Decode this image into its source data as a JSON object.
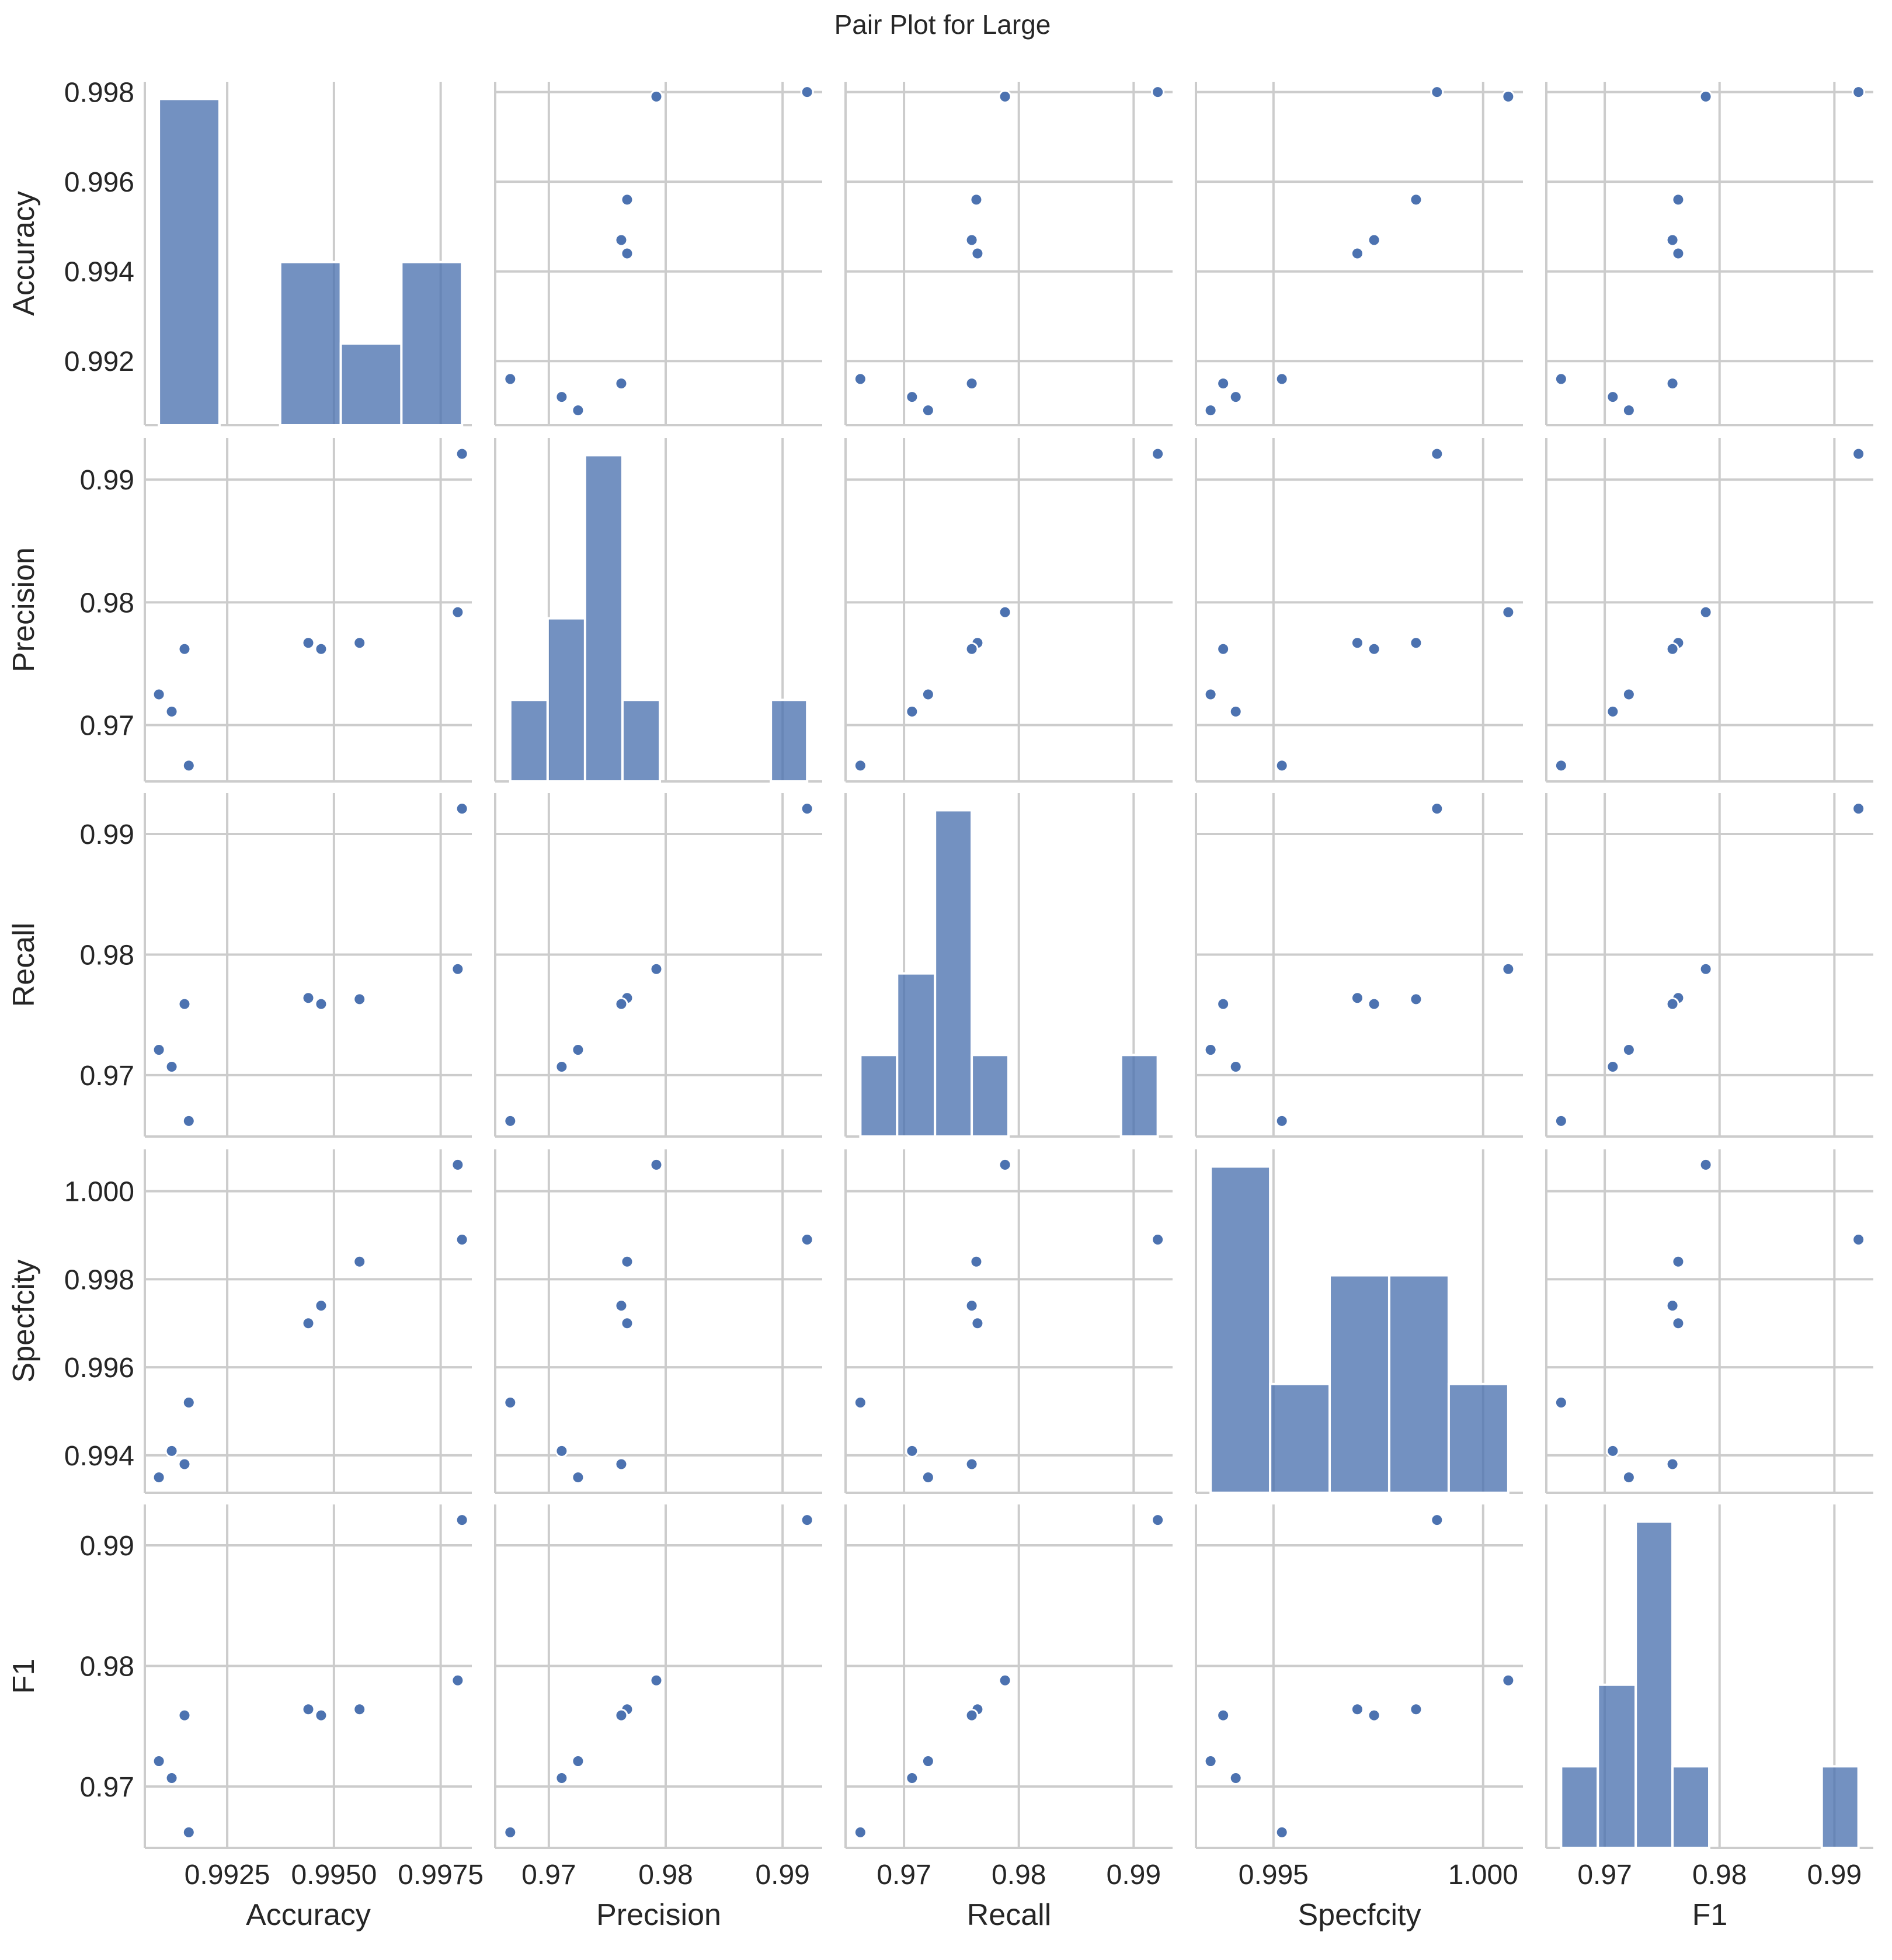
{
  "chart_data": {
    "type": "scatter",
    "title": "Pair Plot for Large",
    "variables": [
      "Accuracy",
      "Precision",
      "Recall",
      "Specfcity",
      "F1"
    ],
    "samples": [
      [
        0.998,
        0.9921,
        0.9921,
        0.9989,
        0.9921
      ],
      [
        0.9979,
        0.9792,
        0.9788,
        1.0006,
        0.9788
      ],
      [
        0.9956,
        0.9767,
        0.9763,
        0.9984,
        0.9764
      ],
      [
        0.9947,
        0.9762,
        0.9759,
        0.9974,
        0.9759
      ],
      [
        0.9944,
        0.9767,
        0.9764,
        0.997,
        0.9764
      ],
      [
        0.9916,
        0.9667,
        0.9662,
        0.9952,
        0.9662
      ],
      [
        0.9915,
        0.9762,
        0.9759,
        0.9938,
        0.9759
      ],
      [
        0.9912,
        0.9711,
        0.9707,
        0.9941,
        0.9707
      ],
      [
        0.9909,
        0.9725,
        0.9721,
        0.9935,
        0.9721
      ]
    ],
    "histograms": [
      {
        "variable": "Accuracy",
        "edges": [
          0.9909,
          0.99232,
          0.99374,
          0.99516,
          0.99658,
          0.998
        ],
        "counts": [
          4,
          0,
          2,
          1,
          2
        ]
      },
      {
        "variable": "Precision",
        "edges": [
          0.9667,
          0.9699,
          0.9731,
          0.9763,
          0.9795,
          0.9826,
          0.9858,
          0.989,
          0.9921
        ],
        "counts": [
          1,
          2,
          4,
          1,
          0,
          0,
          0,
          1
        ]
      },
      {
        "variable": "Recall",
        "edges": [
          0.9662,
          0.9694,
          0.9727,
          0.9759,
          0.9791,
          0.9824,
          0.9856,
          0.9889,
          0.9921
        ],
        "counts": [
          1,
          2,
          4,
          1,
          0,
          0,
          0,
          1
        ]
      },
      {
        "variable": "Specfcity",
        "edges": [
          0.9935,
          0.99492,
          0.99634,
          0.99776,
          0.99918,
          1.0006
        ],
        "counts": [
          3,
          1,
          2,
          2,
          1
        ]
      },
      {
        "variable": "F1",
        "edges": [
          0.9662,
          0.9694,
          0.9727,
          0.9759,
          0.9791,
          0.9824,
          0.9856,
          0.9889,
          0.9921
        ],
        "counts": [
          1,
          2,
          4,
          1,
          0,
          0,
          0,
          1
        ]
      }
    ],
    "axes": [
      {
        "name": "Accuracy",
        "lim": [
          0.99057,
          0.99823
        ],
        "ticks": [
          0.992,
          0.994,
          0.996,
          0.998
        ],
        "tick_labels": [
          "0.992",
          "0.994",
          "0.996",
          "0.998"
        ],
        "xticks": [
          0.9925,
          0.995,
          0.9975
        ],
        "xtick_labels": [
          "0.9925",
          "0.9950",
          "0.9975"
        ]
      },
      {
        "name": "Precision",
        "lim": [
          0.96541,
          0.99339
        ],
        "ticks": [
          0.97,
          0.98,
          0.99
        ],
        "tick_labels": [
          "0.97",
          "0.98",
          "0.99"
        ]
      },
      {
        "name": "Recall",
        "lim": [
          0.96491,
          0.99339
        ],
        "ticks": [
          0.97,
          0.98,
          0.99
        ],
        "tick_labels": [
          "0.97",
          "0.98",
          "0.99"
        ]
      },
      {
        "name": "Specfcity",
        "lim": [
          0.99315,
          1.00095
        ],
        "ticks": [
          0.994,
          0.996,
          0.998,
          1.0
        ],
        "tick_labels": [
          "0.994",
          "0.996",
          "0.998",
          "1.000"
        ],
        "xticks": [
          0.995,
          1.0
        ],
        "xtick_labels": [
          "0.995",
          "1.000"
        ]
      },
      {
        "name": "F1",
        "lim": [
          0.96491,
          0.99339
        ],
        "ticks": [
          0.97,
          0.98,
          0.99
        ],
        "tick_labels": [
          "0.97",
          "0.98",
          "0.99"
        ]
      }
    ],
    "xlabel": "",
    "ylabel": "",
    "grid": true,
    "legend": "none"
  }
}
